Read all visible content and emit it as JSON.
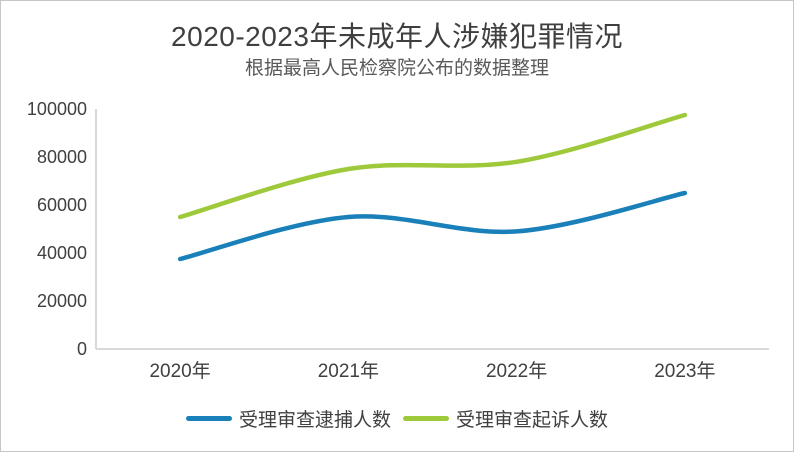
{
  "page": {
    "title": "2020-2023年未成年人涉嫌犯罪情况",
    "subtitle": "根据最高人民检察院公布的数据整理"
  },
  "chart_data": {
    "type": "line",
    "title": "2020-2023年未成年人涉嫌犯罪情况",
    "subtitle": "根据最高人民检察院公布的数据整理",
    "categories": [
      "2020年",
      "2021年",
      "2022年",
      "2023年"
    ],
    "series": [
      {
        "name": "受理审查逮捕人数",
        "color": "#1a80b9",
        "values": [
          37500,
          55000,
          49000,
          65000
        ]
      },
      {
        "name": "受理审查起诉人数",
        "color": "#9dc93a",
        "values": [
          55000,
          75000,
          78000,
          97500
        ]
      }
    ],
    "xlabel": "",
    "ylabel": "",
    "ylim": [
      0,
      100000
    ],
    "yticks": [
      0,
      20000,
      40000,
      60000,
      80000,
      100000
    ],
    "grid": false,
    "smooth": true,
    "legend_position": "bottom",
    "axis_color": "#d9d9d9",
    "label_color": "#404040",
    "line_width": 4.5
  }
}
